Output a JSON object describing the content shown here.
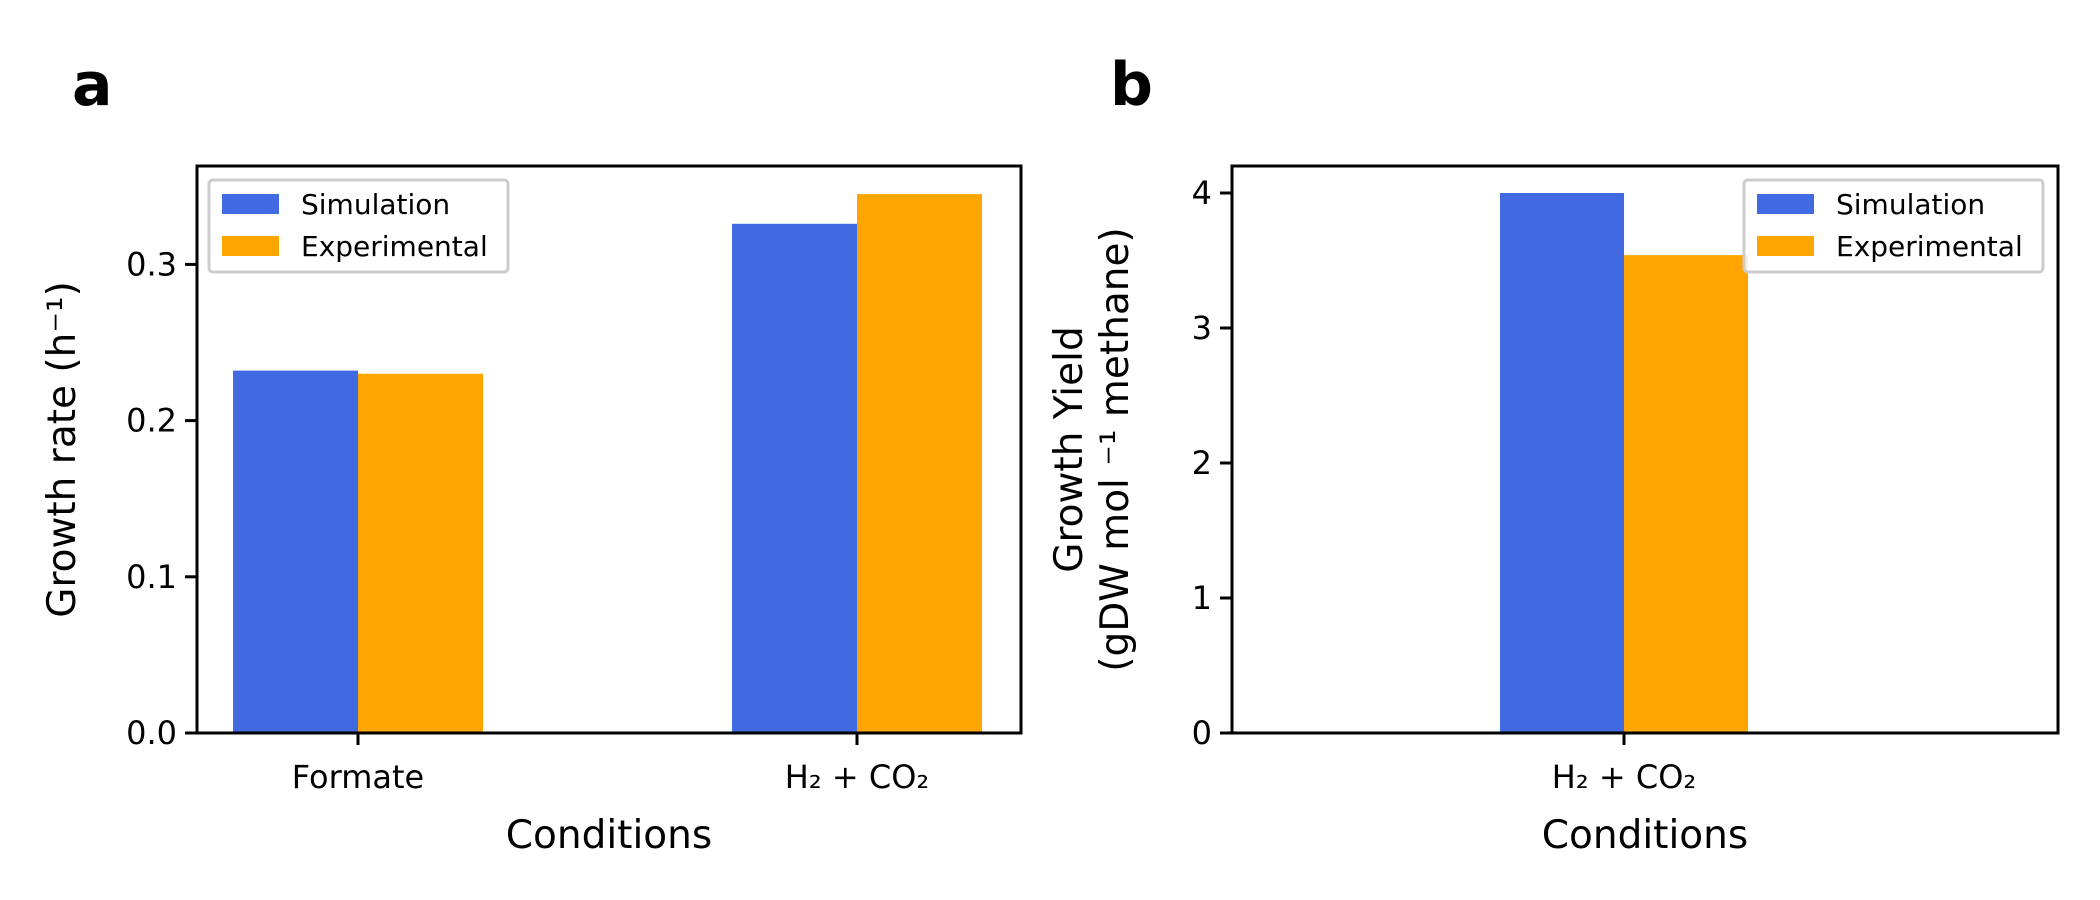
{
  "chart_data": [
    {
      "type": "bar",
      "panel": "a",
      "categories": [
        "Formate",
        "H₂ + CO₂"
      ],
      "series": [
        {
          "name": "Simulation",
          "color": "#4169E1",
          "values": [
            0.232,
            0.326
          ]
        },
        {
          "name": "Experimental",
          "color": "#FFA500",
          "values": [
            0.23,
            0.345
          ]
        }
      ],
      "xlabel": "Conditions",
      "ylabel": "Growth rate (h⁻¹)",
      "ylim": [
        0,
        0.363
      ],
      "yticks": [
        0.0,
        0.1,
        0.2,
        0.3
      ],
      "ytick_labels": [
        "0.0",
        "0.1",
        "0.2",
        "0.3"
      ],
      "grid": false,
      "legend_position": "top-left"
    },
    {
      "type": "bar",
      "panel": "b",
      "categories": [
        "H₂ + CO₂"
      ],
      "series": [
        {
          "name": "Simulation",
          "color": "#4169E1",
          "values": [
            4.0
          ]
        },
        {
          "name": "Experimental",
          "color": "#FFA500",
          "values": [
            3.54
          ]
        }
      ],
      "xlabel": "Conditions",
      "ylabel": [
        "Growth Yield",
        "(gDW mol ⁻¹ methane)"
      ],
      "ylim": [
        0,
        4.2
      ],
      "yticks": [
        0,
        1,
        2,
        3,
        4
      ],
      "ytick_labels": [
        "0",
        "1",
        "2",
        "3",
        "4"
      ],
      "grid": false,
      "legend_position": "top-right"
    }
  ]
}
